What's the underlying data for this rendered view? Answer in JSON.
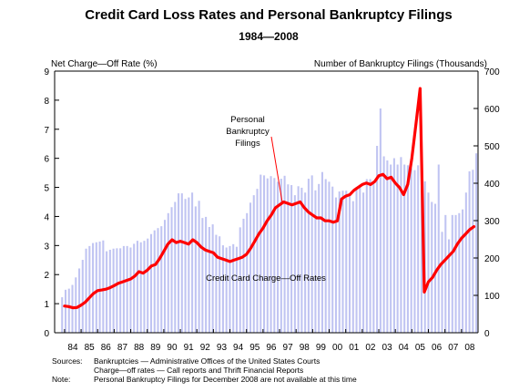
{
  "chart_data": {
    "type": "bar+line",
    "title": "Credit Card Loss Rates and Personal Bankruptcy Filings",
    "subtitle": "1984—2008",
    "left_axis_label": "Net Charge—Off Rate (%)",
    "right_axis_label": "Number of Bankruptcy Filings (Thousands)",
    "left_ylim": [
      0,
      9
    ],
    "left_ticks": [
      "0",
      "1",
      "2",
      "3",
      "4",
      "5",
      "6",
      "7",
      "8",
      "9"
    ],
    "right_ylim": [
      0,
      700
    ],
    "right_ticks": [
      "0",
      "100",
      "200",
      "300",
      "400",
      "500",
      "600",
      "700"
    ],
    "x_tick_labels": [
      "84",
      "85",
      "86",
      "87",
      "88",
      "89",
      "90",
      "91",
      "92",
      "93",
      "94",
      "95",
      "96",
      "97",
      "98",
      "99",
      "00",
      "01",
      "02",
      "03",
      "04",
      "05",
      "06",
      "07",
      "08"
    ],
    "bar_series": {
      "name": "Personal Bankruptcy Filings",
      "unit": "thousands",
      "values": [
        95,
        115,
        118,
        128,
        148,
        172,
        195,
        225,
        232,
        240,
        242,
        244,
        247,
        218,
        222,
        225,
        226,
        226,
        232,
        232,
        228,
        238,
        246,
        242,
        246,
        252,
        264,
        274,
        280,
        285,
        302,
        320,
        336,
        350,
        373,
        373,
        358,
        362,
        375,
        338,
        353,
        307,
        310,
        283,
        290,
        262,
        258,
        234,
        228,
        232,
        237,
        230,
        282,
        305,
        320,
        348,
        368,
        385,
        423,
        421,
        413,
        419,
        414,
        404,
        412,
        420,
        397,
        395,
        368,
        392,
        388,
        375,
        412,
        421,
        381,
        398,
        430,
        411,
        404,
        391,
        362,
        378,
        380,
        380,
        370,
        352,
        390,
        396,
        375,
        411,
        411,
        400,
        500,
        600,
        472,
        461,
        450,
        467,
        450,
        470,
        450,
        448,
        440,
        435,
        448,
        435,
        405,
        375,
        350,
        345,
        450,
        270,
        315,
        250,
        315,
        315,
        320,
        330,
        375,
        432,
        436,
        480
      ]
    },
    "line_series": {
      "name": "Credit Card Charge—Off Rates",
      "unit": "percent",
      "points": [
        [
          1984.0,
          0.92
        ],
        [
          1984.25,
          0.9
        ],
        [
          1984.5,
          0.86
        ],
        [
          1984.75,
          0.87
        ],
        [
          1985.0,
          0.95
        ],
        [
          1985.25,
          1.05
        ],
        [
          1985.5,
          1.2
        ],
        [
          1985.75,
          1.35
        ],
        [
          1986.0,
          1.45
        ],
        [
          1986.25,
          1.47
        ],
        [
          1986.5,
          1.5
        ],
        [
          1986.75,
          1.55
        ],
        [
          1987.0,
          1.62
        ],
        [
          1987.25,
          1.7
        ],
        [
          1987.5,
          1.75
        ],
        [
          1987.75,
          1.8
        ],
        [
          1988.0,
          1.85
        ],
        [
          1988.25,
          1.95
        ],
        [
          1988.5,
          2.1
        ],
        [
          1988.75,
          2.05
        ],
        [
          1989.0,
          2.15
        ],
        [
          1989.25,
          2.3
        ],
        [
          1989.5,
          2.35
        ],
        [
          1989.75,
          2.55
        ],
        [
          1990.0,
          2.8
        ],
        [
          1990.25,
          3.05
        ],
        [
          1990.5,
          3.2
        ],
        [
          1990.75,
          3.1
        ],
        [
          1991.0,
          3.15
        ],
        [
          1991.25,
          3.1
        ],
        [
          1991.5,
          3.05
        ],
        [
          1991.75,
          3.2
        ],
        [
          1992.0,
          3.1
        ],
        [
          1992.25,
          2.95
        ],
        [
          1992.5,
          2.85
        ],
        [
          1992.75,
          2.8
        ],
        [
          1993.0,
          2.75
        ],
        [
          1993.25,
          2.6
        ],
        [
          1993.5,
          2.55
        ],
        [
          1993.75,
          2.5
        ],
        [
          1994.0,
          2.45
        ],
        [
          1994.25,
          2.5
        ],
        [
          1994.5,
          2.55
        ],
        [
          1994.75,
          2.6
        ],
        [
          1995.0,
          2.7
        ],
        [
          1995.25,
          2.9
        ],
        [
          1995.5,
          3.15
        ],
        [
          1995.75,
          3.4
        ],
        [
          1996.0,
          3.6
        ],
        [
          1996.25,
          3.85
        ],
        [
          1996.5,
          4.05
        ],
        [
          1996.75,
          4.3
        ],
        [
          1997.0,
          4.4
        ],
        [
          1997.25,
          4.5
        ],
        [
          1997.5,
          4.45
        ],
        [
          1997.75,
          4.4
        ],
        [
          1998.0,
          4.45
        ],
        [
          1998.25,
          4.5
        ],
        [
          1998.5,
          4.3
        ],
        [
          1998.75,
          4.15
        ],
        [
          1999.0,
          4.05
        ],
        [
          1999.25,
          3.95
        ],
        [
          1999.5,
          3.95
        ],
        [
          1999.75,
          3.85
        ],
        [
          2000.0,
          3.85
        ],
        [
          2000.25,
          3.8
        ],
        [
          2000.5,
          3.85
        ],
        [
          2000.75,
          4.6
        ],
        [
          2001.0,
          4.7
        ],
        [
          2001.25,
          4.75
        ],
        [
          2001.5,
          4.9
        ],
        [
          2001.75,
          5.0
        ],
        [
          2002.0,
          5.1
        ],
        [
          2002.25,
          5.15
        ],
        [
          2002.5,
          5.1
        ],
        [
          2002.75,
          5.2
        ],
        [
          2003.0,
          5.4
        ],
        [
          2003.25,
          5.45
        ],
        [
          2003.5,
          5.3
        ],
        [
          2003.75,
          5.35
        ],
        [
          2004.0,
          5.15
        ],
        [
          2004.25,
          5.0
        ],
        [
          2004.5,
          4.75
        ],
        [
          2004.75,
          5.1
        ],
        [
          2005.0,
          6.0
        ],
        [
          2005.25,
          7.2
        ],
        [
          2005.5,
          8.4
        ],
        [
          2005.75,
          1.4
        ],
        [
          2006.0,
          1.75
        ],
        [
          2006.25,
          1.9
        ],
        [
          2006.5,
          2.15
        ],
        [
          2006.75,
          2.35
        ],
        [
          2007.0,
          2.5
        ],
        [
          2007.25,
          2.65
        ],
        [
          2007.5,
          2.8
        ],
        [
          2007.75,
          3.05
        ],
        [
          2008.0,
          3.25
        ],
        [
          2008.25,
          3.4
        ],
        [
          2008.5,
          3.55
        ],
        [
          2008.75,
          3.65
        ]
      ]
    },
    "annotations": {
      "bankruptcy_label_lines": [
        "Personal",
        "Bankruptcy",
        "Filings"
      ],
      "chargeoff_label": "Credit Card Charge—Off Rates"
    },
    "grid": false,
    "colors": {
      "bars": "#c0c4f2",
      "line": "#ff0000",
      "axes": "#000000"
    }
  },
  "footnotes": {
    "sources_label": "Sources:",
    "sources_line1": "Bankruptcies — Administrative Offices of the United States Courts",
    "sources_line2": "Charge—off rates — Call reports and Thrift Financial Reports",
    "note_label": "Note:",
    "note_text": "Personal Bankruptcy Filings for December 2008 are not available at this time"
  }
}
